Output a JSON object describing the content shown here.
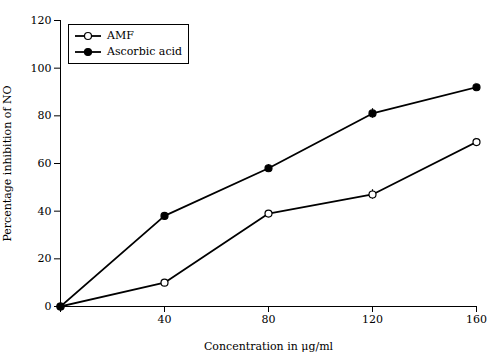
{
  "chart_data": {
    "type": "line",
    "xlabel": "Concentration in μg/ml",
    "ylabel": "Percentage inhibition of NO",
    "x": [
      0,
      40,
      80,
      120,
      160
    ],
    "series": [
      {
        "name": "AMF",
        "color": "#000000",
        "marker": "circle_open",
        "values": [
          0,
          10,
          39,
          47,
          69
        ],
        "errors": [
          0,
          0.8,
          1.2,
          2.0,
          2.0
        ]
      },
      {
        "name": "Ascorbic acid",
        "color": "#000000",
        "marker": "circle",
        "values": [
          0,
          38,
          58,
          81,
          92
        ],
        "errors": [
          0,
          1.2,
          1.5,
          2.0,
          2.0
        ]
      }
    ],
    "xlim": [
      0,
      160
    ],
    "xticks": [
      {
        "value": 0,
        "label": ""
      },
      40,
      80,
      120,
      160
    ],
    "ylim": [
      0,
      120
    ],
    "yticks": [
      0,
      20,
      40,
      60,
      80,
      100,
      120
    ],
    "legend": "upper left"
  }
}
